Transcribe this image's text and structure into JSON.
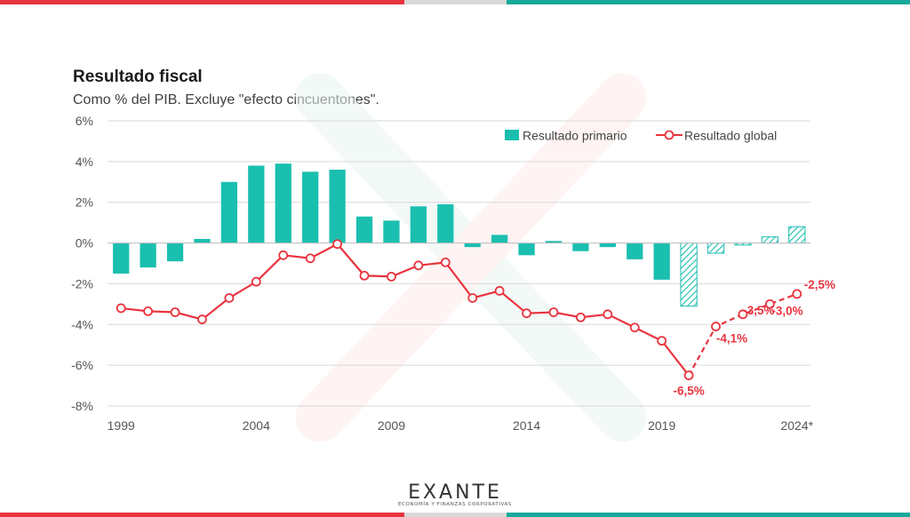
{
  "chart_data": {
    "type": "bar",
    "title": "Resultado fiscal",
    "subtitle": "Como % del PIB. Excluye \"efecto cincuentones\".",
    "x": [
      1999,
      2000,
      2001,
      2002,
      2003,
      2004,
      2005,
      2006,
      2007,
      2008,
      2009,
      2010,
      2011,
      2012,
      2013,
      2014,
      2015,
      2016,
      2017,
      2018,
      2019,
      2020,
      2021,
      2022,
      2023,
      2024
    ],
    "x_tick_labels": [
      {
        "x": 1999,
        "label": "1999"
      },
      {
        "x": 2004,
        "label": "2004"
      },
      {
        "x": 2009,
        "label": "2009"
      },
      {
        "x": 2014,
        "label": "2014"
      },
      {
        "x": 2019,
        "label": "2019"
      },
      {
        "x": 2024,
        "label": "2024*"
      }
    ],
    "y_ticks": [
      6,
      4,
      2,
      0,
      -2,
      -4,
      -6,
      -8
    ],
    "y_tick_labels": [
      "6%",
      "4%",
      "2%",
      "0%",
      "-2%",
      "-4%",
      "-6%",
      "-8%"
    ],
    "ylim": [
      -8,
      6
    ],
    "grid": true,
    "legend_position": "top-right",
    "series": [
      {
        "name": "Resultado primario",
        "type": "bar",
        "color": "#1abfb0",
        "values": [
          -1.5,
          -1.2,
          -0.9,
          0.2,
          3.0,
          3.8,
          3.9,
          3.5,
          3.6,
          1.3,
          1.1,
          1.8,
          1.9,
          -0.2,
          0.4,
          -0.6,
          0.1,
          -0.4,
          -0.2,
          -0.8,
          -1.8,
          -3.1,
          -0.5,
          -0.1,
          0.3,
          0.8
        ],
        "projected_from": 2020
      },
      {
        "name": "Resultado global",
        "type": "line",
        "color": "#e8343f",
        "values": [
          -3.2,
          -3.35,
          -3.4,
          -3.75,
          -2.7,
          -1.9,
          -0.6,
          -0.75,
          -0.05,
          -1.6,
          -1.65,
          -1.1,
          -0.95,
          -2.7,
          -2.35,
          -3.45,
          -3.4,
          -3.65,
          -3.5,
          -4.15,
          -4.8,
          -6.5,
          -4.1,
          -3.5,
          -3.0,
          -2.5
        ],
        "dashed_from": 2020
      }
    ],
    "annotations": [
      {
        "x": 2020,
        "y": -6.5,
        "text": "-6,5%"
      },
      {
        "x": 2021,
        "y": -4.1,
        "text": "-4,1%"
      },
      {
        "x": 2022,
        "y": -3.5,
        "text": "-3,5%"
      },
      {
        "x": 2023,
        "y": -3.0,
        "text": "-3,0%"
      },
      {
        "x": 2024,
        "y": -2.5,
        "text": "-2,5%"
      }
    ]
  },
  "logo": {
    "name": "EXANTE",
    "tagline": "ECONOMÍA Y FINANZAS CORPORATIVAS"
  }
}
